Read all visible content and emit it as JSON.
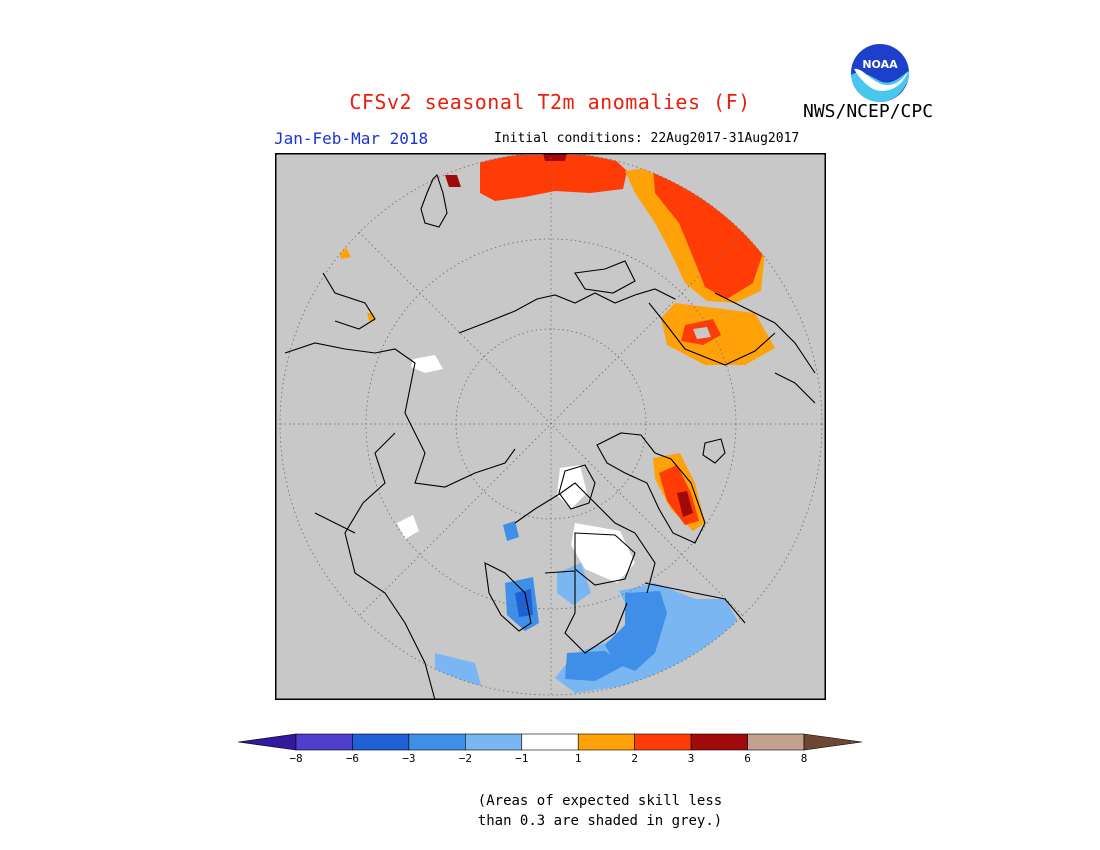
{
  "header": {
    "title": "CFSv2 seasonal T2m anomalies (F)",
    "agency": "NWS/NCEP/CPC",
    "season": "Jan-Feb-Mar 2018",
    "initial_conditions": "Initial conditions: 22Aug2017-31Aug2017",
    "logo_text": "NOAA"
  },
  "legend": {
    "bins": [
      {
        "color": "#33199e"
      },
      {
        "color": "#4f3fcc"
      },
      {
        "color": "#1f60d4"
      },
      {
        "color": "#3f8fe8"
      },
      {
        "color": "#7ab6f2"
      },
      {
        "color": "#ffffff"
      },
      {
        "color": "#ffa20a"
      },
      {
        "color": "#ff3c06"
      },
      {
        "color": "#a10a0a"
      },
      {
        "color": "#c4a08e"
      },
      {
        "color": "#6e4633"
      }
    ],
    "tick_labels": [
      "−8",
      "−6",
      "−3",
      "−2",
      "−1",
      "1",
      "2",
      "3",
      "6",
      "8"
    ]
  },
  "footnote": {
    "line1": "(Areas of expected skill less",
    "line2": "than 0.3 are shaded in grey.)"
  },
  "map": {
    "projection": "north-polar-stereographic",
    "background_color": "#c8c8c8",
    "outside_color": "#c8c8c8"
  }
}
